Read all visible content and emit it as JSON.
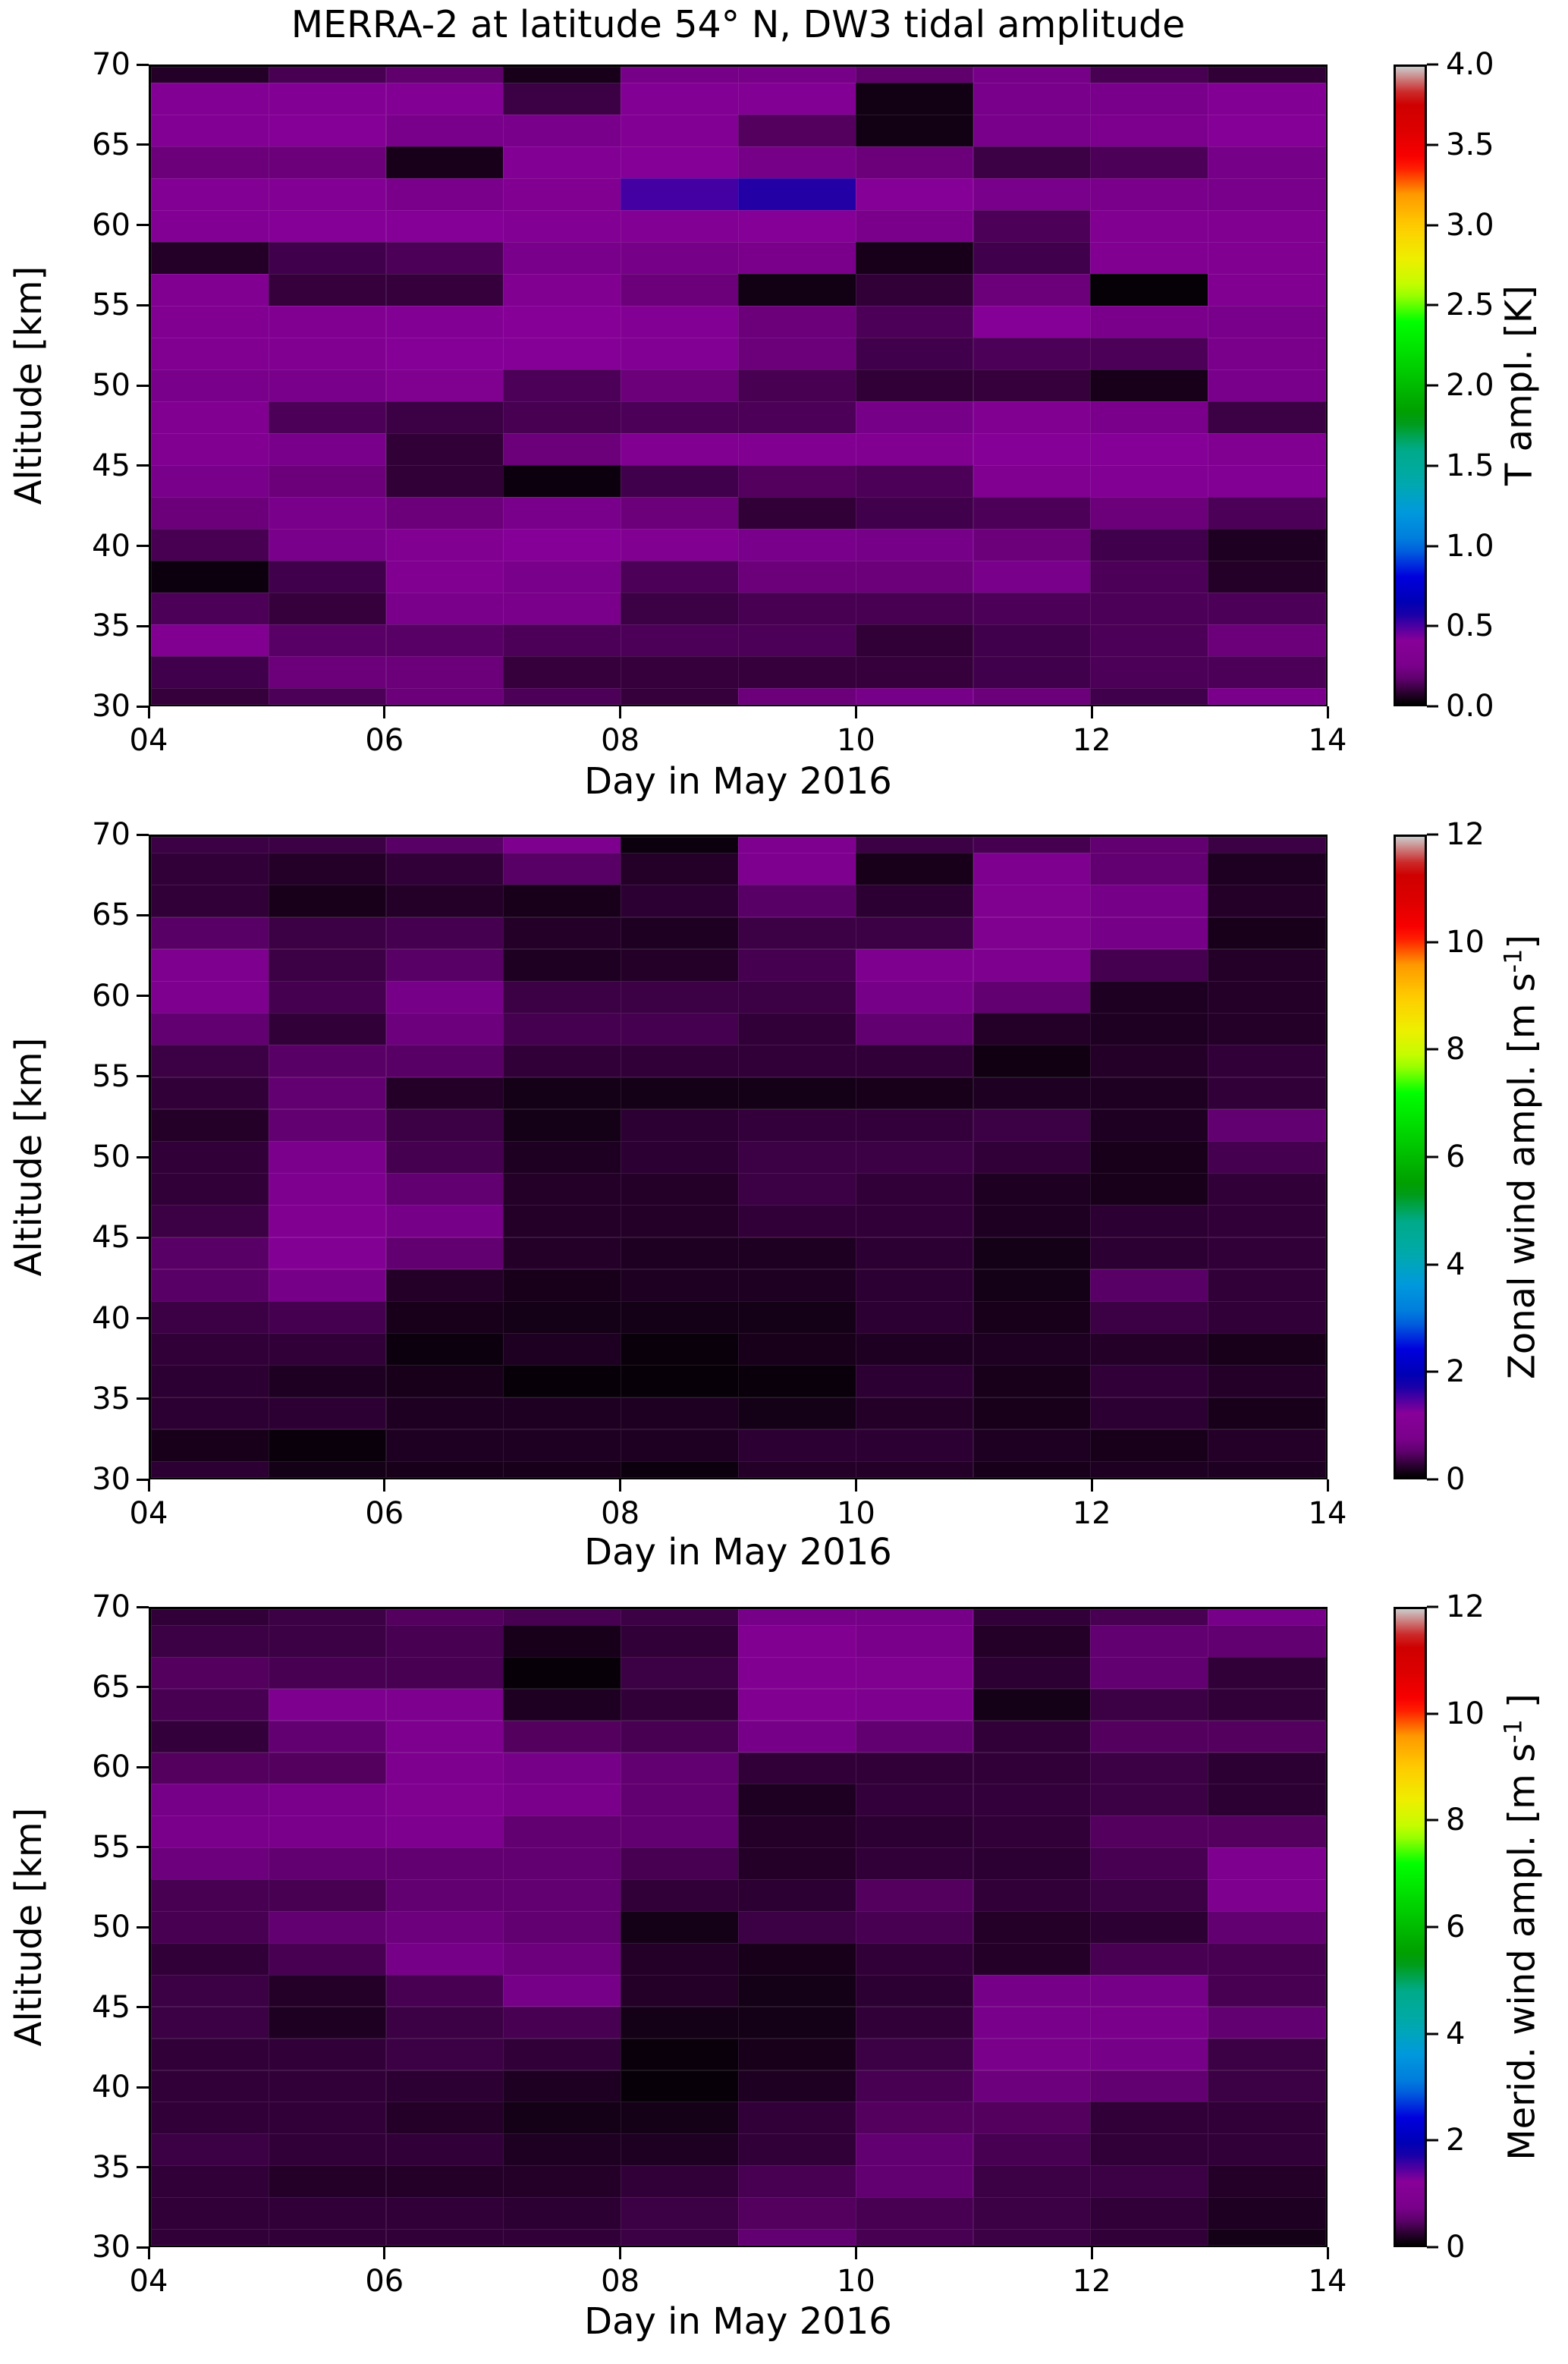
{
  "title": "MERRA-2 at latitude 54° N, DW3 tidal amplitude",
  "x_axis": {
    "label": "Day in May 2016",
    "tick_labels": [
      "04",
      "06",
      "08",
      "10",
      "12",
      "14"
    ],
    "tick_days": [
      4,
      6,
      8,
      10,
      12,
      14
    ],
    "range_days": [
      4,
      14
    ]
  },
  "y_axis": {
    "label": "Altitude [km]",
    "tick_labels": [
      "70",
      "65",
      "60",
      "55",
      "50",
      "45",
      "40",
      "35",
      "30"
    ],
    "tick_km": [
      70,
      65,
      60,
      55,
      50,
      45,
      40,
      35,
      30
    ],
    "range_km": [
      30,
      70
    ]
  },
  "colormap": "nipy_spectral",
  "x_edges_days": [
    4,
    5,
    6,
    7,
    8,
    9,
    10,
    11,
    12,
    13,
    14
  ],
  "altitude_edges_km": [
    70,
    69,
    67,
    65,
    63,
    61,
    59,
    57,
    55,
    53,
    51,
    49,
    47,
    45,
    43,
    41,
    39,
    37,
    35,
    33,
    31,
    30
  ],
  "chart_data": [
    {
      "type": "heatmap",
      "name": "temperature-amplitude",
      "colorbar": {
        "label_main": "T ampl. [K]",
        "label_sup": "",
        "label_end": "",
        "tick_labels": [
          "0.0",
          "0.5",
          "1.0",
          "1.5",
          "2.0",
          "2.5",
          "3.0",
          "3.5",
          "4.0"
        ],
        "tick_values": [
          0,
          0.5,
          1,
          1.5,
          2,
          2.5,
          3,
          3.5,
          4
        ],
        "vmin": 0,
        "vmax": 4
      },
      "values": [
        [
          0.06,
          0.12,
          0.16,
          0.04,
          0.2,
          0.2,
          0.16,
          0.2,
          0.12,
          0.08
        ],
        [
          0.34,
          0.34,
          0.34,
          0.1,
          0.34,
          0.34,
          0.03,
          0.22,
          0.22,
          0.34
        ],
        [
          0.34,
          0.36,
          0.22,
          0.22,
          0.34,
          0.14,
          0.03,
          0.22,
          0.26,
          0.36
        ],
        [
          0.18,
          0.18,
          0.04,
          0.34,
          0.36,
          0.2,
          0.18,
          0.1,
          0.13,
          0.2
        ],
        [
          0.34,
          0.34,
          0.24,
          0.32,
          0.5,
          0.55,
          0.36,
          0.22,
          0.24,
          0.22
        ],
        [
          0.34,
          0.36,
          0.36,
          0.34,
          0.34,
          0.36,
          0.24,
          0.13,
          0.32,
          0.32
        ],
        [
          0.06,
          0.11,
          0.13,
          0.22,
          0.2,
          0.24,
          0.04,
          0.11,
          0.32,
          0.32
        ],
        [
          0.32,
          0.09,
          0.09,
          0.32,
          0.18,
          0.03,
          0.08,
          0.18,
          0.01,
          0.32
        ],
        [
          0.32,
          0.32,
          0.34,
          0.38,
          0.34,
          0.18,
          0.13,
          0.36,
          0.24,
          0.22
        ],
        [
          0.32,
          0.32,
          0.36,
          0.36,
          0.34,
          0.18,
          0.11,
          0.13,
          0.13,
          0.24
        ],
        [
          0.22,
          0.22,
          0.3,
          0.13,
          0.18,
          0.12,
          0.08,
          0.09,
          0.04,
          0.22
        ],
        [
          0.32,
          0.13,
          0.1,
          0.12,
          0.13,
          0.13,
          0.2,
          0.32,
          0.24,
          0.1
        ],
        [
          0.32,
          0.22,
          0.08,
          0.18,
          0.32,
          0.32,
          0.32,
          0.36,
          0.36,
          0.32
        ],
        [
          0.22,
          0.18,
          0.08,
          0.02,
          0.11,
          0.14,
          0.13,
          0.32,
          0.34,
          0.34
        ],
        [
          0.18,
          0.22,
          0.18,
          0.22,
          0.18,
          0.08,
          0.11,
          0.13,
          0.18,
          0.13
        ],
        [
          0.12,
          0.22,
          0.32,
          0.36,
          0.32,
          0.22,
          0.2,
          0.18,
          0.11,
          0.05
        ],
        [
          0.02,
          0.11,
          0.32,
          0.22,
          0.13,
          0.18,
          0.18,
          0.22,
          0.13,
          0.06
        ],
        [
          0.13,
          0.09,
          0.24,
          0.24,
          0.1,
          0.12,
          0.12,
          0.13,
          0.13,
          0.13
        ],
        [
          0.32,
          0.15,
          0.15,
          0.13,
          0.13,
          0.13,
          0.08,
          0.11,
          0.13,
          0.18
        ],
        [
          0.11,
          0.18,
          0.18,
          0.09,
          0.09,
          0.09,
          0.09,
          0.11,
          0.13,
          0.13
        ],
        [
          0.09,
          0.13,
          0.18,
          0.13,
          0.09,
          0.18,
          0.2,
          0.18,
          0.11,
          0.24
        ]
      ]
    },
    {
      "type": "heatmap",
      "name": "zonal-wind-amplitude",
      "colorbar": {
        "label_main": "Zonal wind ampl. [m s",
        "label_sup": "-1",
        "label_end": "]",
        "tick_labels": [
          "0",
          "2",
          "4",
          "6",
          "8",
          "10",
          "12"
        ],
        "tick_values": [
          0,
          2,
          4,
          6,
          8,
          10,
          12
        ],
        "vmin": 0,
        "vmax": 12
      },
      "values": [
        [
          0.3,
          0.3,
          0.45,
          0.8,
          0.06,
          0.85,
          0.3,
          0.35,
          0.5,
          0.3
        ],
        [
          0.25,
          0.18,
          0.25,
          0.45,
          0.18,
          0.8,
          0.12,
          0.85,
          0.5,
          0.15
        ],
        [
          0.25,
          0.12,
          0.18,
          0.12,
          0.22,
          0.45,
          0.22,
          0.9,
          0.6,
          0.18
        ],
        [
          0.45,
          0.3,
          0.35,
          0.18,
          0.15,
          0.3,
          0.3,
          0.9,
          0.6,
          0.12
        ],
        [
          0.8,
          0.3,
          0.45,
          0.15,
          0.18,
          0.35,
          0.85,
          0.85,
          0.35,
          0.18
        ],
        [
          0.85,
          0.35,
          0.6,
          0.3,
          0.3,
          0.3,
          0.6,
          0.5,
          0.15,
          0.18
        ],
        [
          0.5,
          0.25,
          0.55,
          0.35,
          0.35,
          0.25,
          0.5,
          0.18,
          0.15,
          0.18
        ],
        [
          0.3,
          0.45,
          0.45,
          0.25,
          0.25,
          0.25,
          0.25,
          0.08,
          0.18,
          0.25
        ],
        [
          0.25,
          0.5,
          0.18,
          0.1,
          0.1,
          0.1,
          0.12,
          0.15,
          0.15,
          0.25
        ],
        [
          0.18,
          0.5,
          0.3,
          0.1,
          0.22,
          0.26,
          0.26,
          0.3,
          0.15,
          0.5
        ],
        [
          0.25,
          0.75,
          0.35,
          0.15,
          0.22,
          0.3,
          0.3,
          0.25,
          0.12,
          0.35
        ],
        [
          0.25,
          0.85,
          0.5,
          0.18,
          0.18,
          0.3,
          0.25,
          0.15,
          0.12,
          0.25
        ],
        [
          0.3,
          0.95,
          0.6,
          0.18,
          0.18,
          0.25,
          0.25,
          0.15,
          0.22,
          0.25
        ],
        [
          0.45,
          1.0,
          0.5,
          0.18,
          0.15,
          0.15,
          0.22,
          0.1,
          0.22,
          0.25
        ],
        [
          0.45,
          0.6,
          0.18,
          0.12,
          0.15,
          0.15,
          0.22,
          0.1,
          0.45,
          0.25
        ],
        [
          0.3,
          0.35,
          0.12,
          0.1,
          0.1,
          0.1,
          0.22,
          0.12,
          0.3,
          0.25
        ],
        [
          0.25,
          0.25,
          0.06,
          0.15,
          0.05,
          0.12,
          0.15,
          0.15,
          0.18,
          0.12
        ],
        [
          0.22,
          0.15,
          0.12,
          0.04,
          0.04,
          0.05,
          0.22,
          0.12,
          0.25,
          0.18
        ],
        [
          0.22,
          0.22,
          0.15,
          0.15,
          0.15,
          0.1,
          0.18,
          0.12,
          0.22,
          0.12
        ],
        [
          0.12,
          0.05,
          0.15,
          0.15,
          0.15,
          0.22,
          0.22,
          0.15,
          0.12,
          0.18
        ],
        [
          0.22,
          0.1,
          0.12,
          0.12,
          0.06,
          0.18,
          0.18,
          0.12,
          0.15,
          0.15
        ]
      ]
    },
    {
      "type": "heatmap",
      "name": "meridional-wind-amplitude",
      "colorbar": {
        "label_main": "Merid. wind ampl. [m s",
        "label_sup": "-1",
        "label_end": " ]",
        "tick_labels": [
          "0",
          "2",
          "4",
          "6",
          "8",
          "10",
          "12"
        ],
        "tick_values": [
          0,
          2,
          4,
          6,
          8,
          10,
          12
        ],
        "vmin": 0,
        "vmax": 12
      },
      "values": [
        [
          0.25,
          0.3,
          0.42,
          0.36,
          0.3,
          0.6,
          0.6,
          0.25,
          0.36,
          0.6
        ],
        [
          0.3,
          0.3,
          0.36,
          0.12,
          0.25,
          0.95,
          0.72,
          0.18,
          0.5,
          0.5
        ],
        [
          0.42,
          0.36,
          0.36,
          0.04,
          0.3,
          0.95,
          0.9,
          0.22,
          0.5,
          0.25
        ],
        [
          0.36,
          0.85,
          0.85,
          0.15,
          0.25,
          0.95,
          0.85,
          0.1,
          0.3,
          0.25
        ],
        [
          0.26,
          0.5,
          0.8,
          0.42,
          0.36,
          0.6,
          0.5,
          0.25,
          0.42,
          0.42
        ],
        [
          0.42,
          0.42,
          0.85,
          0.6,
          0.5,
          0.25,
          0.25,
          0.25,
          0.3,
          0.22
        ],
        [
          0.6,
          0.72,
          0.9,
          0.72,
          0.5,
          0.15,
          0.26,
          0.26,
          0.3,
          0.22
        ],
        [
          0.72,
          0.72,
          0.8,
          0.5,
          0.5,
          0.18,
          0.22,
          0.25,
          0.42,
          0.42
        ],
        [
          0.55,
          0.5,
          0.5,
          0.5,
          0.36,
          0.18,
          0.25,
          0.22,
          0.36,
          0.8
        ],
        [
          0.36,
          0.36,
          0.5,
          0.5,
          0.25,
          0.22,
          0.42,
          0.25,
          0.3,
          0.8
        ],
        [
          0.36,
          0.5,
          0.55,
          0.5,
          0.1,
          0.3,
          0.36,
          0.18,
          0.22,
          0.5
        ],
        [
          0.25,
          0.36,
          0.6,
          0.55,
          0.18,
          0.12,
          0.25,
          0.18,
          0.36,
          0.36
        ],
        [
          0.3,
          0.18,
          0.36,
          0.6,
          0.18,
          0.1,
          0.22,
          0.6,
          0.6,
          0.36
        ],
        [
          0.3,
          0.15,
          0.3,
          0.36,
          0.1,
          0.1,
          0.25,
          0.66,
          0.72,
          0.5
        ],
        [
          0.25,
          0.25,
          0.3,
          0.25,
          0.05,
          0.12,
          0.3,
          0.72,
          0.6,
          0.3
        ],
        [
          0.25,
          0.25,
          0.22,
          0.15,
          0.04,
          0.15,
          0.36,
          0.55,
          0.5,
          0.3
        ],
        [
          0.25,
          0.25,
          0.18,
          0.1,
          0.1,
          0.25,
          0.42,
          0.42,
          0.25,
          0.25
        ],
        [
          0.3,
          0.25,
          0.25,
          0.15,
          0.15,
          0.25,
          0.5,
          0.36,
          0.25,
          0.25
        ],
        [
          0.25,
          0.18,
          0.18,
          0.18,
          0.25,
          0.36,
          0.5,
          0.3,
          0.3,
          0.18
        ],
        [
          0.25,
          0.25,
          0.25,
          0.22,
          0.3,
          0.42,
          0.36,
          0.3,
          0.25,
          0.15
        ],
        [
          0.25,
          0.25,
          0.25,
          0.25,
          0.3,
          0.5,
          0.36,
          0.3,
          0.25,
          0.1
        ]
      ]
    }
  ]
}
